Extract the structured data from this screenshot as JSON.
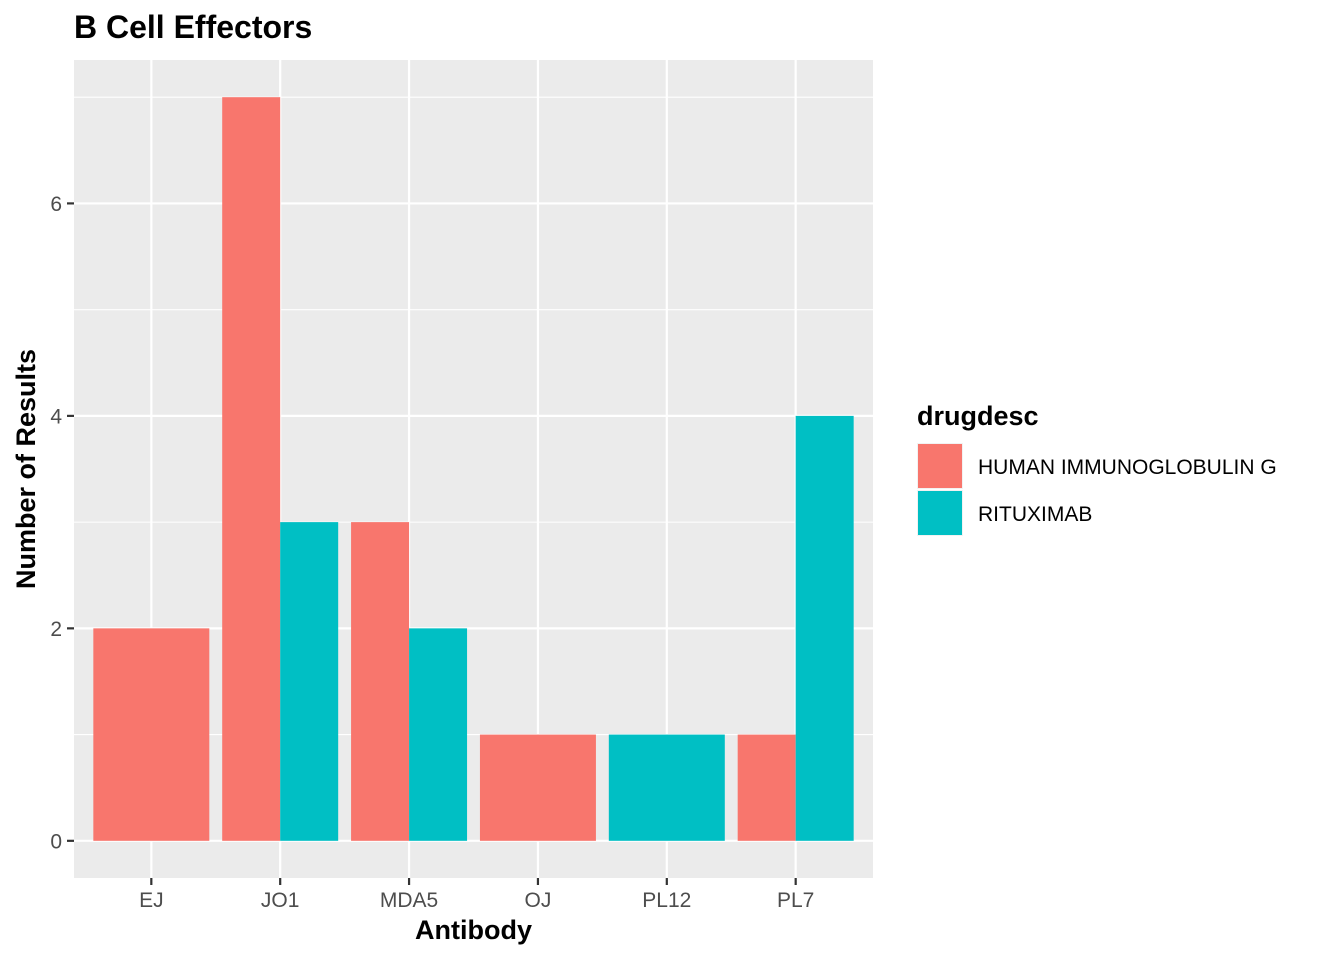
{
  "chart_data": {
    "type": "bar",
    "title": "B Cell Effectors",
    "xlabel": "Antibody",
    "ylabel": "Number of Results",
    "categories": [
      "EJ",
      "JO1",
      "MDA5",
      "OJ",
      "PL12",
      "PL7"
    ],
    "series": [
      {
        "name": "HUMAN IMMUNOGLOBULIN G",
        "color": "#F8766D",
        "values": [
          2,
          7,
          3,
          1,
          null,
          1
        ]
      },
      {
        "name": "RITUXIMAB",
        "color": "#00BFC4",
        "values": [
          null,
          3,
          2,
          null,
          1,
          4
        ]
      }
    ],
    "ylim": [
      -0.35,
      7.35
    ],
    "yticks": [
      0,
      2,
      4,
      6
    ],
    "grid": true,
    "legend": {
      "title": "drugdesc",
      "position": "right"
    }
  }
}
